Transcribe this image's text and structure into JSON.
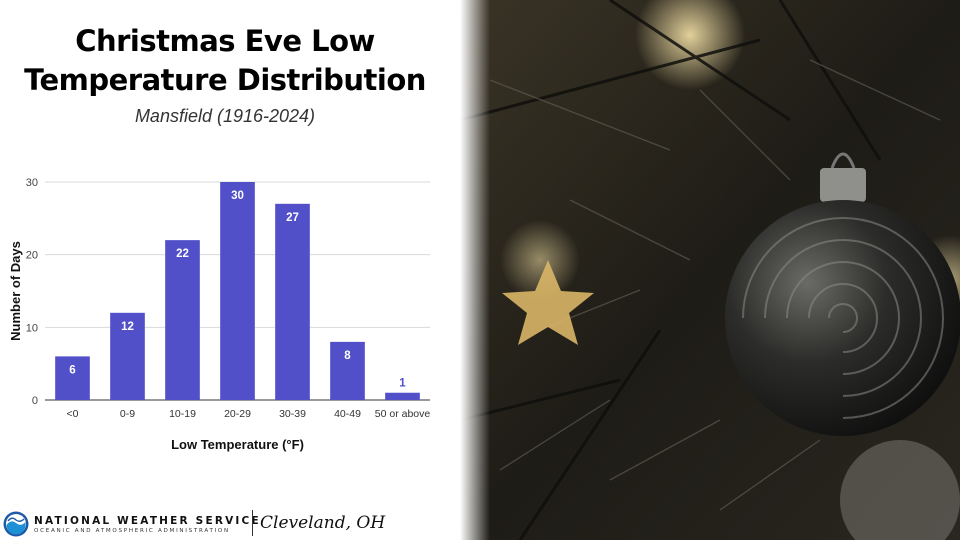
{
  "title_line1": "Christmas Eve Low",
  "title_line2": "Temperature Distribution",
  "subtitle": "Mansfield (1916-2024)",
  "chart_data": {
    "type": "bar",
    "categories": [
      "<0",
      "0-9",
      "10-19",
      "20-29",
      "30-39",
      "40-49",
      "50 or above"
    ],
    "values": [
      6,
      12,
      22,
      30,
      27,
      8,
      1
    ],
    "xlabel": "Low Temperature (°F)",
    "ylabel": "Number of Days",
    "ylim": [
      0,
      30
    ],
    "yticks": [
      0,
      10,
      20,
      30
    ],
    "grid": true,
    "bar_color": "#5250C9"
  },
  "footer": {
    "agency": "NATIONAL WEATHER SERVICE",
    "agency_sub": "OCEANIC AND ATMOSPHERIC ADMINISTRATION",
    "office": "Cleveland, OH"
  },
  "photo_icon": "christmas-ornament-photo"
}
